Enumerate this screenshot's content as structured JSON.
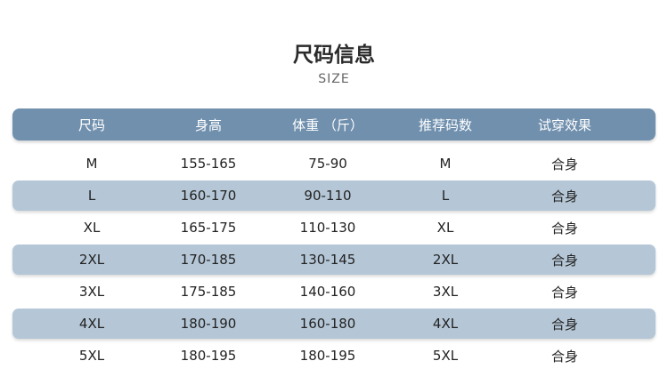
{
  "title": "尺码信息",
  "subtitle": "SIZE",
  "colors": {
    "header": "#7090ae",
    "stripe": "#b5c7d7"
  },
  "columns": [
    "尺码",
    "身高",
    "体重 （斤）",
    "推荐码数",
    "试穿效果"
  ],
  "rows": [
    [
      "M",
      "155-165",
      "75-90",
      "M",
      "合身"
    ],
    [
      "L",
      "160-170",
      "90-110",
      "L",
      "合身"
    ],
    [
      "XL",
      "165-175",
      "110-130",
      "XL",
      "合身"
    ],
    [
      "2XL",
      "170-185",
      "130-145",
      "2XL",
      "合身"
    ],
    [
      "3XL",
      "175-185",
      "140-160",
      "3XL",
      "合身"
    ],
    [
      "4XL",
      "180-190",
      "160-180",
      "4XL",
      "合身"
    ],
    [
      "5XL",
      "180-195",
      "180-195",
      "5XL",
      "合身"
    ]
  ]
}
